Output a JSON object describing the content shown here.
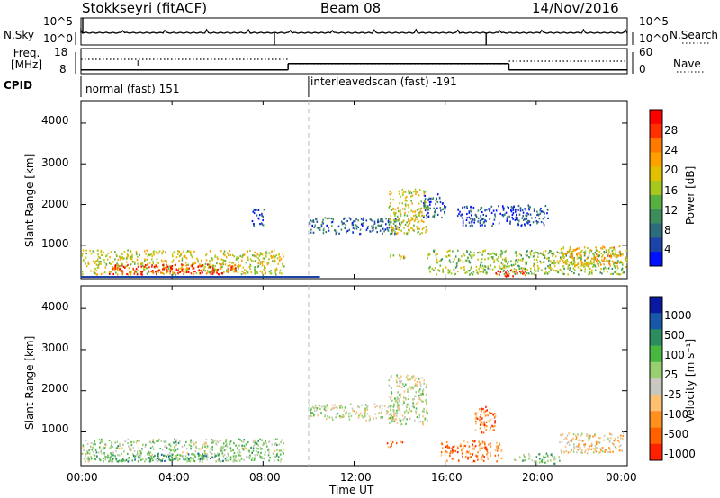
{
  "header": {
    "station": "Stokkseyri (fitACF)",
    "beam": "Beam 08",
    "date": "14/Nov/2016"
  },
  "top_panels": {
    "nsky_label": "N.Sky",
    "nsearch_label": "N.Search",
    "freq_label_line1": "Freq.",
    "freq_label_line2": "[MHz]",
    "nave_label": "Nave",
    "cpid_label": "CPID",
    "count_ticks": [
      "10^5",
      "10^0"
    ],
    "freq_ticks": [
      "18",
      "8"
    ],
    "nave_ticks": [
      "60",
      "0"
    ],
    "modes": [
      {
        "name": "normal (fast) 151",
        "start_hour": 0,
        "end_hour": 10
      },
      {
        "name": "interleavedscan (fast) -191",
        "start_hour": 10,
        "end_hour": 24
      }
    ]
  },
  "power_panel": {
    "ylabel": "Slant Range [km]",
    "yticks": [
      "4000",
      "3000",
      "2000",
      "1000"
    ],
    "colorbar_label": "Power [dB]",
    "colorbar_ticks": [
      "28",
      "24",
      "20",
      "16",
      "12",
      "8",
      "4"
    ],
    "colorbar_colors": [
      "#ff0000",
      "#ff3000",
      "#ff7800",
      "#ffa000",
      "#e0c000",
      "#a8c820",
      "#58b040",
      "#3c8c5c",
      "#2c6c7c",
      "#1c44a8",
      "#0010ff"
    ]
  },
  "velocity_panel": {
    "ylabel": "Slant Range [km]",
    "yticks": [
      "4000",
      "3000",
      "2000",
      "1000"
    ],
    "colorbar_label": "Velocity [m s⁻¹]",
    "colorbar_ticks": [
      "1000",
      "500",
      "100",
      "25",
      "-25",
      "-100",
      "-500",
      "-1000"
    ],
    "colorbar_colors": [
      "#0a1aa0",
      "#1858a8",
      "#2c8c60",
      "#48b840",
      "#98d070",
      "#c8c8c0",
      "#ffc070",
      "#ff9020",
      "#ff6000",
      "#ff2000"
    ]
  },
  "x_axis": {
    "label": "Time UT",
    "ticks": [
      "00:00",
      "04:00",
      "08:00",
      "12:00",
      "16:00",
      "20:00",
      "00:00"
    ]
  },
  "chart_data": {
    "type": "heatmap",
    "x_range_hours": [
      0,
      24
    ],
    "y_range_km": [
      180,
      4550
    ],
    "tick_hours": [
      0,
      4,
      8,
      12,
      16,
      20,
      24
    ],
    "ytick_values_km": [
      4000,
      3000,
      2000,
      1000
    ],
    "nsky_spikes_hours": [
      8.5,
      17.8
    ],
    "freq_segments": [
      {
        "start": 0,
        "end": 9.1,
        "mhz": 9.5
      },
      {
        "start": 9.1,
        "end": 18.8,
        "mhz": 12.0
      },
      {
        "start": 18.8,
        "end": 24,
        "mhz": 9.5
      }
    ],
    "power_blobs": [
      {
        "t0": 0.0,
        "t1": 8.9,
        "r0": 300,
        "r1": 900,
        "level": 0.55
      },
      {
        "t0": 1.2,
        "t1": 6.8,
        "r0": 300,
        "r1": 550,
        "level": 0.9
      },
      {
        "t0": 7.5,
        "t1": 8.1,
        "r0": 1500,
        "r1": 1900,
        "level": 0.15
      },
      {
        "t0": 10.0,
        "t1": 14.0,
        "r0": 1300,
        "r1": 1700,
        "level": 0.2
      },
      {
        "t0": 13.5,
        "t1": 15.2,
        "r0": 1300,
        "r1": 2400,
        "level": 0.55
      },
      {
        "t0": 13.4,
        "t1": 14.2,
        "r0": 680,
        "r1": 800,
        "level": 0.6
      },
      {
        "t0": 15.0,
        "t1": 16.0,
        "r0": 1700,
        "r1": 2300,
        "level": 0.2
      },
      {
        "t0": 15.2,
        "t1": 24.0,
        "r0": 300,
        "r1": 900,
        "level": 0.45
      },
      {
        "t0": 18.2,
        "t1": 19.8,
        "r0": 250,
        "r1": 400,
        "level": 0.95
      },
      {
        "t0": 21.0,
        "t1": 23.8,
        "r0": 500,
        "r1": 1000,
        "level": 0.65
      },
      {
        "t0": 16.5,
        "t1": 20.5,
        "r0": 1500,
        "r1": 2000,
        "level": 0.15
      }
    ],
    "velocity_blobs": [
      {
        "t0": 0.0,
        "t1": 8.9,
        "r0": 300,
        "r1": 850,
        "level": 0.45
      },
      {
        "t0": 1.0,
        "t1": 6.5,
        "r0": 300,
        "r1": 500,
        "level": 0.3
      },
      {
        "t0": 13.5,
        "t1": 15.2,
        "r0": 1200,
        "r1": 2400,
        "level": 0.52
      },
      {
        "t0": 13.4,
        "t1": 14.2,
        "r0": 650,
        "r1": 800,
        "level": 0.8
      },
      {
        "t0": 15.8,
        "t1": 18.5,
        "r0": 300,
        "r1": 800,
        "level": 0.78
      },
      {
        "t0": 19.0,
        "t1": 21.0,
        "r0": 250,
        "r1": 500,
        "level": 0.4
      },
      {
        "t0": 21.0,
        "t1": 23.8,
        "r0": 500,
        "r1": 1000,
        "level": 0.62
      },
      {
        "t0": 10.0,
        "t1": 14.0,
        "r0": 1300,
        "r1": 1700,
        "level": 0.52
      },
      {
        "t0": 17.3,
        "t1": 18.2,
        "r0": 1000,
        "r1": 1700,
        "level": 0.8
      }
    ]
  }
}
